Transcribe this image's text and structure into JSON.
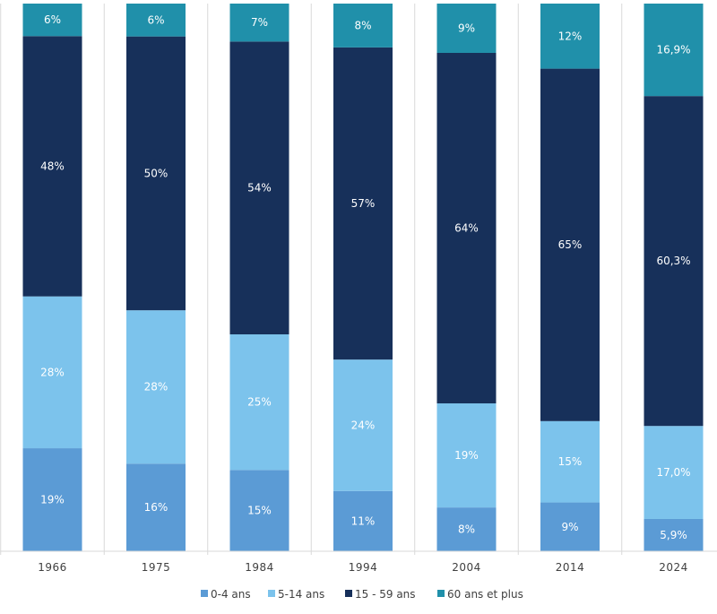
{
  "chart_data": {
    "type": "bar",
    "stacked": true,
    "normalized": true,
    "categories": [
      "1966",
      "1975",
      "1984",
      "1994",
      "2004",
      "2014",
      "2024"
    ],
    "series": [
      {
        "name": "0-4 ans",
        "color": "#5b9bd5",
        "values": [
          19,
          16,
          15,
          11,
          8,
          9,
          5.9
        ],
        "labels": [
          "19%",
          "16%",
          "15%",
          "11%",
          "8%",
          "9%",
          "5,9%"
        ]
      },
      {
        "name": "5-14 ans",
        "color": "#7cc3ec",
        "values": [
          28,
          28,
          25,
          24,
          19,
          15,
          17.0
        ],
        "labels": [
          "28%",
          "28%",
          "25%",
          "24%",
          "19%",
          "15%",
          "17,0%"
        ]
      },
      {
        "name": "15 - 59 ans",
        "color": "#17305a",
        "values": [
          48,
          50,
          54,
          57,
          64,
          65,
          60.3
        ],
        "labels": [
          "48%",
          "50%",
          "54%",
          "57%",
          "64%",
          "65%",
          "60,3%"
        ]
      },
      {
        "name": "60 ans et plus",
        "color": "#2090aa",
        "values": [
          6,
          6,
          7,
          8,
          9,
          12,
          16.9
        ],
        "labels": [
          "6%",
          "6%",
          "7%",
          "8%",
          "9%",
          "12%",
          "16,9%"
        ]
      }
    ],
    "title": "",
    "xlabel": "",
    "ylabel": "",
    "ylim": [
      0,
      100
    ],
    "legend": "bottom",
    "grid": false
  }
}
